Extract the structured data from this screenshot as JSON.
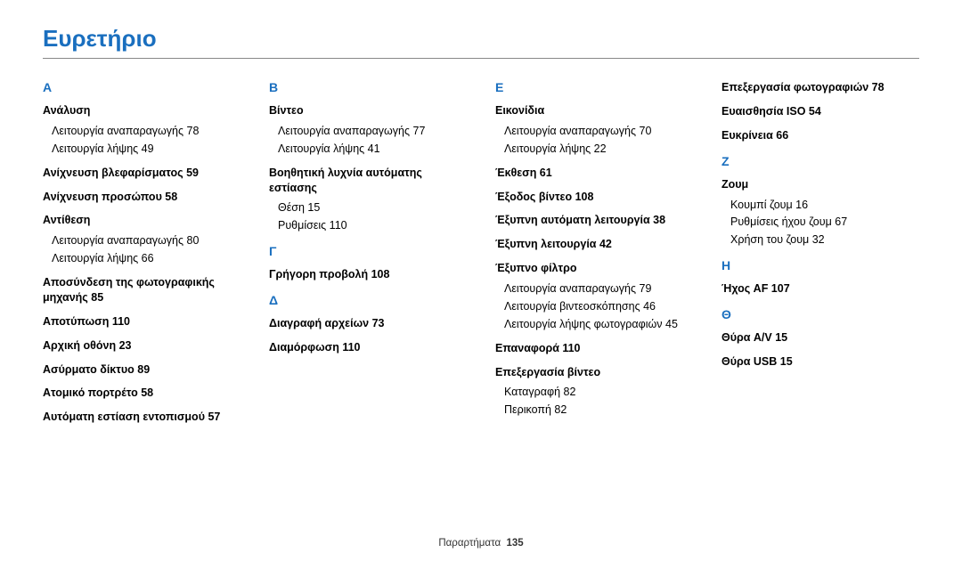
{
  "title": "Ευρετήριο",
  "footer_label": "Παραρτήματα",
  "footer_page": "135",
  "columns": [
    {
      "sections": [
        {
          "letter": "Α",
          "items": [
            {
              "head": "Ανάλυση",
              "subs": [
                "Λειτουργία αναπαραγωγής  78",
                "Λειτουργία λήψης  49"
              ]
            },
            {
              "head": "Ανίχνευση βλεφαρίσματος  59"
            },
            {
              "head": "Ανίχνευση προσώπου  58"
            },
            {
              "head": "Αντίθεση",
              "subs": [
                "Λειτουργία αναπαραγωγής  80",
                "Λειτουργία λήψης  66"
              ]
            },
            {
              "head": "Αποσύνδεση της φωτογραφικής μηχανής  85"
            },
            {
              "head": "Αποτύπωση  110"
            },
            {
              "head": "Αρχική οθόνη  23"
            },
            {
              "head": "Ασύρματο δίκτυο  89"
            },
            {
              "head": "Ατομικό πορτρέτο  58"
            },
            {
              "head": "Αυτόματη εστίαση εντοπισμού  57"
            }
          ]
        }
      ]
    },
    {
      "sections": [
        {
          "letter": "Β",
          "items": [
            {
              "head": "Βίντεο",
              "subs": [
                "Λειτουργία αναπαραγωγής  77",
                "Λειτουργία λήψης  41"
              ]
            },
            {
              "head": "Βοηθητική λυχνία αυτόματης εστίασης",
              "subs": [
                "Θέση  15",
                "Ρυθμίσεις  110"
              ]
            }
          ]
        },
        {
          "letter": "Γ",
          "items": [
            {
              "head": "Γρήγορη προβολή  108"
            }
          ]
        },
        {
          "letter": "Δ",
          "items": [
            {
              "head": "Διαγραφή αρχείων  73"
            },
            {
              "head": "Διαμόρφωση  110"
            }
          ]
        }
      ]
    },
    {
      "sections": [
        {
          "letter": "Ε",
          "items": [
            {
              "head": "Εικονίδια",
              "subs": [
                "Λειτουργία αναπαραγωγής  70",
                "Λειτουργία λήψης  22"
              ]
            },
            {
              "head": "Έκθεση  61"
            },
            {
              "head": "Έξοδος βίντεο  108"
            },
            {
              "head": "Έξυπνη αυτόματη λειτουργία  38"
            },
            {
              "head": "Έξυπνη λειτουργία  42"
            },
            {
              "head": "Έξυπνο φίλτρο",
              "subs": [
                "Λειτουργία αναπαραγωγής  79",
                "Λειτουργία βιντεοσκόπησης  46",
                "Λειτουργία λήψης φωτογραφιών  45"
              ]
            },
            {
              "head": "Επαναφορά  110"
            },
            {
              "head": "Επεξεργασία βίντεο",
              "subs": [
                "Καταγραφή  82",
                "Περικοπή  82"
              ]
            }
          ]
        }
      ]
    },
    {
      "sections": [
        {
          "letter": "",
          "items": [
            {
              "head": "Επεξεργασία φωτογραφιών  78"
            },
            {
              "head": "Ευαισθησία ISO  54"
            },
            {
              "head": "Ευκρίνεια  66"
            }
          ]
        },
        {
          "letter": "Ζ",
          "items": [
            {
              "head": "Ζουμ",
              "subs": [
                "Κουμπί ζουμ  16",
                "Ρυθμίσεις ήχου ζουμ  67",
                "Χρήση του ζουμ  32"
              ]
            }
          ]
        },
        {
          "letter": "Η",
          "items": [
            {
              "head": "Ήχος AF  107"
            }
          ]
        },
        {
          "letter": "Θ",
          "items": [
            {
              "head": "Θύρα A/V  15"
            },
            {
              "head": "Θύρα USB  15"
            }
          ]
        }
      ]
    }
  ]
}
